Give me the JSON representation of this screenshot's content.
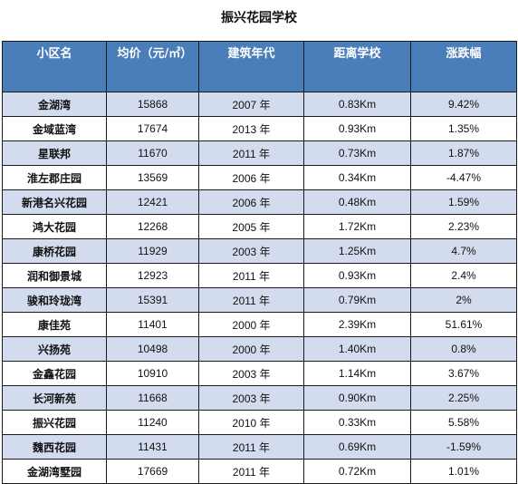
{
  "title": "振兴花园学校",
  "headers": {
    "name": "小区名",
    "price": "均价（元/㎡）",
    "year": "建筑年代",
    "distance": "距离学校",
    "change": "涨跌幅"
  },
  "rows": [
    {
      "name": "金湖湾",
      "price": "15868",
      "year": "2007 年",
      "distance": "0.83Km",
      "change": "9.42%"
    },
    {
      "name": "金域蓝湾",
      "price": "17674",
      "year": "2013 年",
      "distance": "0.93Km",
      "change": "1.35%"
    },
    {
      "name": "星联邦",
      "price": "11670",
      "year": "2011 年",
      "distance": "0.73Km",
      "change": "1.87%"
    },
    {
      "name": "淮左郡庄园",
      "price": "13569",
      "year": "2006 年",
      "distance": "0.34Km",
      "change": "-4.47%"
    },
    {
      "name": "新港名兴花园",
      "price": "12421",
      "year": "2006 年",
      "distance": "0.48Km",
      "change": "1.59%"
    },
    {
      "name": "鸿大花园",
      "price": "12268",
      "year": "2005 年",
      "distance": "1.72Km",
      "change": "2.23%"
    },
    {
      "name": "康桥花园",
      "price": "11929",
      "year": "2003 年",
      "distance": "1.25Km",
      "change": "4.7%"
    },
    {
      "name": "润和御景城",
      "price": "12923",
      "year": "2011 年",
      "distance": "0.93Km",
      "change": "2.4%"
    },
    {
      "name": "骏和玲珑湾",
      "price": "15391",
      "year": "2011 年",
      "distance": "0.79Km",
      "change": "2%"
    },
    {
      "name": "康佳苑",
      "price": "11401",
      "year": "2000 年",
      "distance": "2.39Km",
      "change": "51.61%"
    },
    {
      "name": "兴扬苑",
      "price": "10498",
      "year": "2000 年",
      "distance": "1.40Km",
      "change": "0.8%"
    },
    {
      "name": "金鑫花园",
      "price": "10910",
      "year": "2003 年",
      "distance": "1.14Km",
      "change": "3.67%"
    },
    {
      "name": "长河新苑",
      "price": "11668",
      "year": "2003 年",
      "distance": "0.90Km",
      "change": "2.25%"
    },
    {
      "name": "振兴花园",
      "price": "11240",
      "year": "2010 年",
      "distance": "0.33Km",
      "change": "5.58%"
    },
    {
      "name": "魏西花园",
      "price": "11431",
      "year": "2011 年",
      "distance": "0.69Km",
      "change": "-1.59%"
    },
    {
      "name": "金湖湾墅园",
      "price": "17669",
      "year": "2011 年",
      "distance": "0.72Km",
      "change": "1.01%"
    }
  ]
}
